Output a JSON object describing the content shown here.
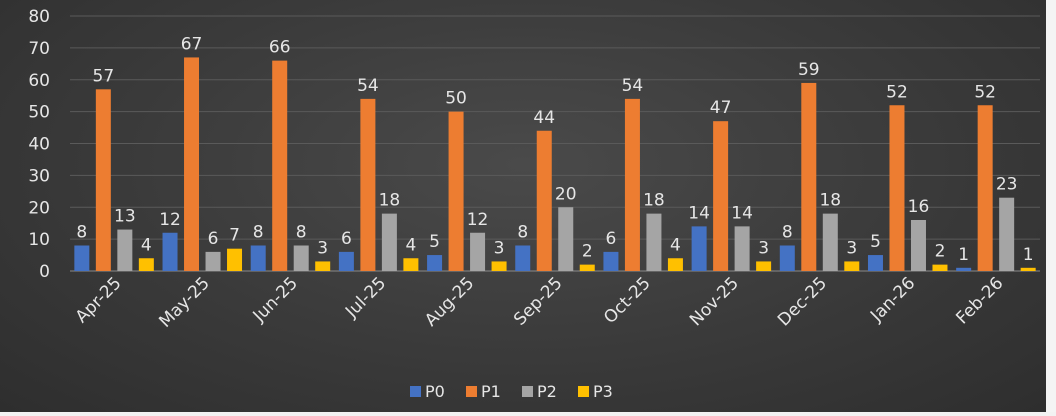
{
  "chart_data": {
    "type": "bar",
    "title": "",
    "xlabel": "",
    "ylabel": "",
    "ylim": [
      0,
      80
    ],
    "yticks": [
      0,
      10,
      20,
      30,
      40,
      50,
      60,
      70,
      80
    ],
    "grid": true,
    "legend": "bottom",
    "categories": [
      "Apr-25",
      "May-25",
      "Jun-25",
      "Jul-25",
      "Aug-25",
      "Sep-25",
      "Oct-25",
      "Nov-25",
      "Dec-25",
      "Jan-26",
      "Feb-26"
    ],
    "series": [
      {
        "name": "P0",
        "color": "#4472c4",
        "values": [
          8,
          12,
          8,
          6,
          5,
          8,
          6,
          14,
          8,
          5,
          1
        ]
      },
      {
        "name": "P1",
        "color": "#ed7d31",
        "values": [
          57,
          67,
          66,
          54,
          50,
          44,
          54,
          47,
          59,
          52,
          52
        ]
      },
      {
        "name": "P2",
        "color": "#a5a5a5",
        "values": [
          13,
          6,
          8,
          18,
          12,
          20,
          18,
          14,
          18,
          16,
          23
        ]
      },
      {
        "name": "P3",
        "color": "#ffc000",
        "values": [
          4,
          7,
          3,
          4,
          3,
          2,
          4,
          3,
          3,
          2,
          1
        ]
      }
    ]
  }
}
